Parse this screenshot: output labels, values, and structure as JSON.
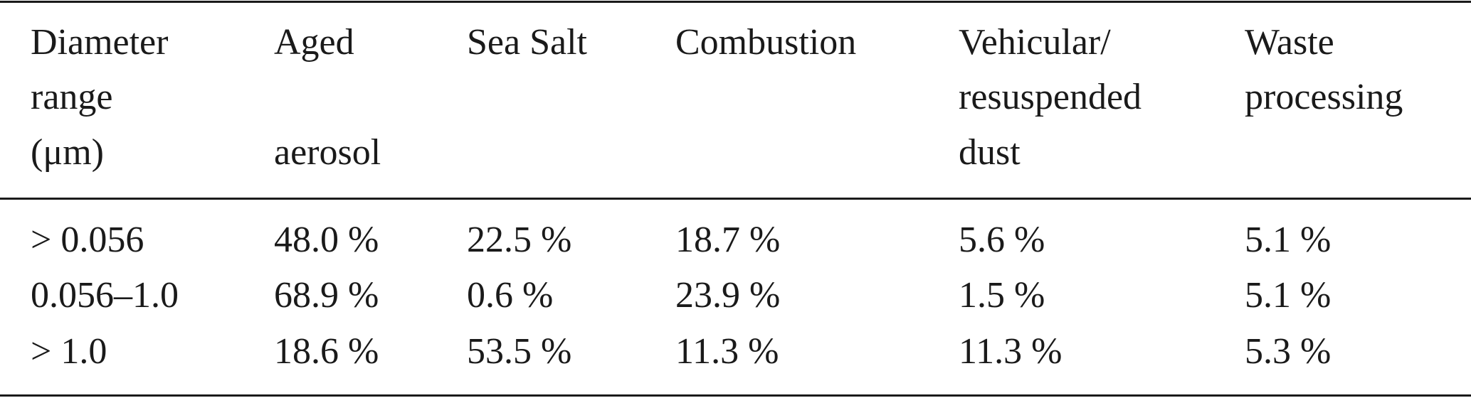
{
  "table": {
    "header": [
      [
        "Diameter",
        "range",
        "(μm)"
      ],
      [
        "Aged",
        "aerosol"
      ],
      [
        "Sea Salt"
      ],
      [
        "Combustion"
      ],
      [
        "Vehicular/",
        "resuspended",
        "dust"
      ],
      [
        "Waste",
        "processing"
      ]
    ],
    "rows": [
      [
        "> 0.056",
        "48.0 %",
        "22.5 %",
        "18.7 %",
        "5.6 %",
        "5.1 %"
      ],
      [
        "0.056–1.0",
        "68.9 %",
        "0.6 %",
        "23.9 %",
        "1.5 %",
        "5.1 %"
      ],
      [
        "> 1.0",
        "18.6 %",
        "53.5 %",
        "11.3 %",
        "11.3 %",
        "5.3 %"
      ]
    ]
  }
}
